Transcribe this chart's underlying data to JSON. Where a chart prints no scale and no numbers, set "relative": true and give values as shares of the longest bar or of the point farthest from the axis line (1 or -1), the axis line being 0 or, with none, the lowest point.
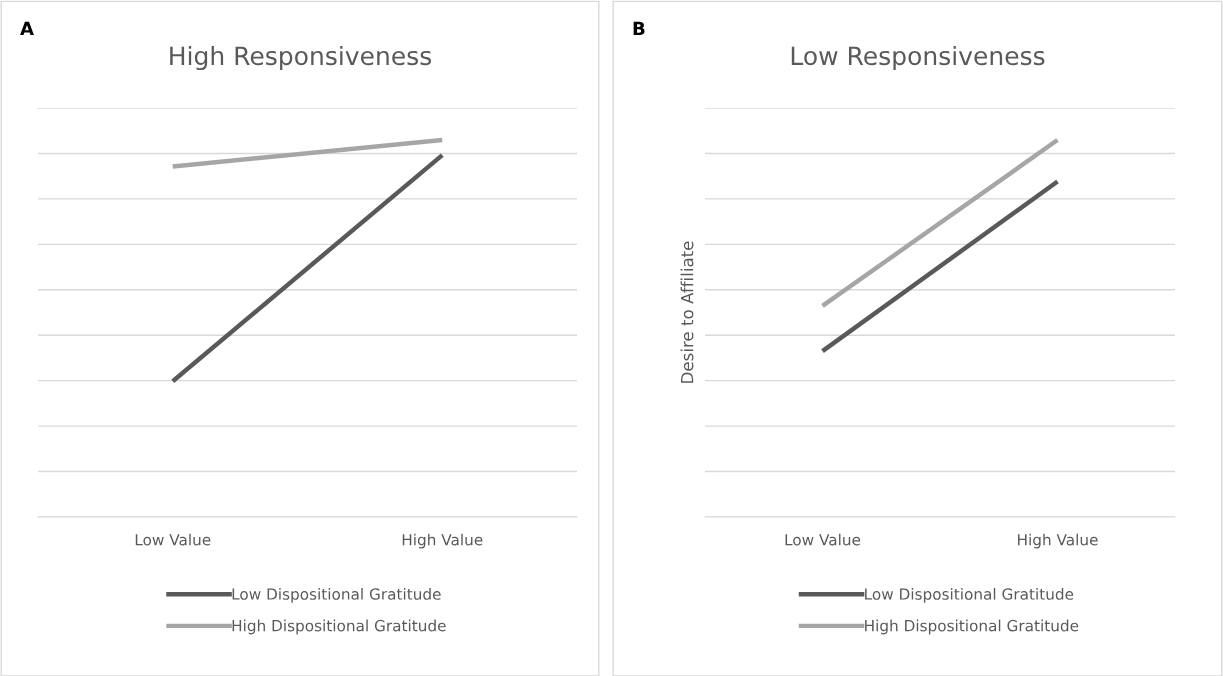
{
  "chart_data": [
    {
      "type": "line",
      "title": "High Responsiveness",
      "categories": [
        "Low Value",
        "High Value"
      ],
      "relative": true,
      "grid": "y",
      "legend": "bottom",
      "tick_labels": "x",
      "annotations": [
        "A"
      ],
      "series": [
        {
          "name": "Low Dispositional Gratitude",
          "color": "#595959",
          "values": [
            0.36,
            0.96
          ]
        },
        {
          "name": "High Dispositional Gratitude",
          "color": "#a6a6a6",
          "values": [
            0.93,
            1.0
          ]
        }
      ]
    },
    {
      "type": "line",
      "title": "Low Responsiveness",
      "ylabel": "Desire to Affiliate",
      "categories": [
        "Low Value",
        "High Value"
      ],
      "relative": true,
      "grid": "y",
      "legend": "bottom",
      "tick_labels": "x",
      "annotations": [
        "B"
      ],
      "series": [
        {
          "name": "Low Dispositional Gratitude",
          "color": "#595959",
          "values": [
            0.44,
            0.89
          ]
        },
        {
          "name": "High Dispositional Gratitude",
          "color": "#a6a6a6",
          "values": [
            0.56,
            1.0
          ]
        }
      ]
    }
  ]
}
